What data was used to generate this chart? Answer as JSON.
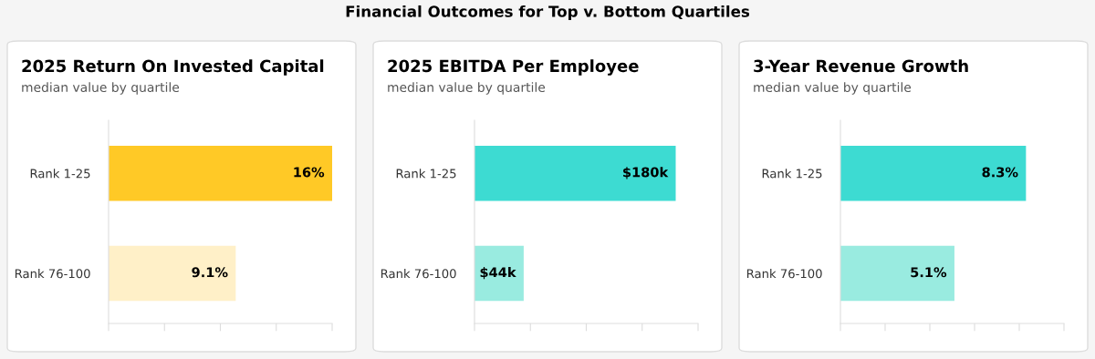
{
  "chart_data": [
    {
      "type": "bar",
      "orientation": "horizontal",
      "title": "2025 Return On Invested Capital",
      "subtitle": "median value by quartile",
      "annotations": [
        "Financial Outcomes for Top v. Bottom Quartiles"
      ],
      "categories": [
        "Rank 1-25",
        "Rank 76-100"
      ],
      "values": [
        16,
        9.1
      ],
      "colors": [
        "#ffc926",
        "#fff0c8"
      ],
      "value_labels": [
        "16%",
        "9.1%"
      ],
      "xlim": [
        0,
        16
      ],
      "xticks": [
        {
          "value": 0,
          "label": null
        },
        {
          "value": 4,
          "label": null
        },
        {
          "value": 8,
          "label": null
        },
        {
          "value": 12,
          "label": null
        },
        {
          "value": 16,
          "label": null
        }
      ],
      "tick_labels": "y",
      "grid": false,
      "legend": false
    },
    {
      "type": "bar",
      "orientation": "horizontal",
      "title": "2025 EBITDA Per Employee",
      "subtitle": "median value by quartile",
      "categories": [
        "Rank 1-25",
        "Rank 76-100"
      ],
      "values": [
        180,
        44
      ],
      "colors": [
        "#3ddbd2",
        "#99ebe0"
      ],
      "value_labels": [
        "$180k",
        "$44k"
      ],
      "xlim": [
        0,
        200
      ],
      "xticks": [
        {
          "value": 0,
          "label": null
        },
        {
          "value": 50,
          "label": null
        },
        {
          "value": 100,
          "label": null
        },
        {
          "value": 150,
          "label": null
        },
        {
          "value": 200,
          "label": null
        }
      ],
      "tick_labels": "y",
      "grid": false,
      "legend": false
    },
    {
      "type": "bar",
      "orientation": "horizontal",
      "title": "3-Year Revenue Growth",
      "subtitle": "median value by quartile",
      "categories": [
        "Rank 1-25",
        "Rank 76-100"
      ],
      "values": [
        8.3,
        5.1
      ],
      "colors": [
        "#3ddbd2",
        "#99ebe0"
      ],
      "value_labels": [
        "8.3%",
        "5.1%"
      ],
      "xlim": [
        0,
        10
      ],
      "xticks": [
        {
          "value": 0,
          "label": null
        },
        {
          "value": 2,
          "label": null
        },
        {
          "value": 4,
          "label": null
        },
        {
          "value": 6,
          "label": null
        },
        {
          "value": 8,
          "label": null
        },
        {
          "value": 10,
          "label": null
        }
      ],
      "tick_labels": "y",
      "grid": false,
      "legend": false
    }
  ]
}
